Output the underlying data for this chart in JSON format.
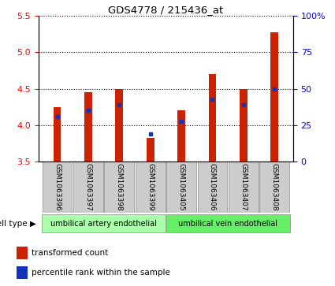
{
  "title": "GDS4778 / 215436_at",
  "samples": [
    "GSM1063396",
    "GSM1063397",
    "GSM1063398",
    "GSM1063399",
    "GSM1063405",
    "GSM1063406",
    "GSM1063407",
    "GSM1063408"
  ],
  "red_values": [
    4.25,
    4.45,
    4.5,
    3.82,
    4.2,
    4.7,
    4.5,
    5.27
  ],
  "blue_values": [
    4.12,
    4.2,
    4.28,
    3.88,
    4.05,
    4.35,
    4.28,
    4.5
  ],
  "ymin": 3.5,
  "ymax": 5.5,
  "yticks_left": [
    3.5,
    4.0,
    4.5,
    5.0,
    5.5
  ],
  "yticks_right": [
    0,
    25,
    50,
    75,
    100
  ],
  "ytick_labels_right": [
    "0",
    "25",
    "50",
    "75",
    "100%"
  ],
  "bar_width": 0.25,
  "bar_color": "#cc2200",
  "blue_color": "#1133bb",
  "group1_label": "umbilical artery endothelial",
  "group2_label": "umbilical vein endothelial",
  "group_color1": "#aaffaa",
  "group_color2": "#66ee66",
  "cell_type_label": "cell type",
  "legend_red_label": "transformed count",
  "legend_blue_label": "percentile rank within the sample",
  "sample_bg_color": "#cccccc",
  "fig_width": 4.25,
  "fig_height": 3.63
}
